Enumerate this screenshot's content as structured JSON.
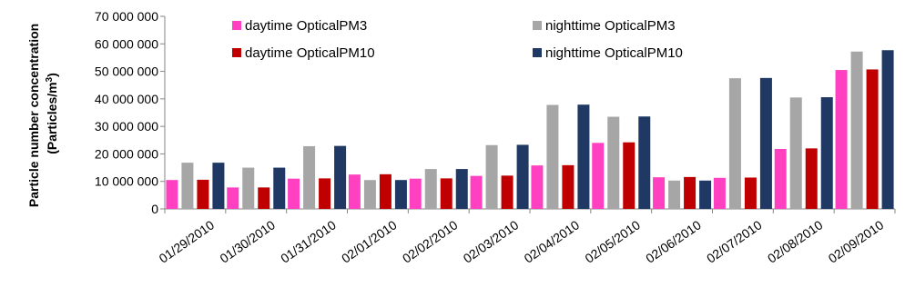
{
  "chart_data": {
    "type": "bar",
    "title": "",
    "xlabel": "",
    "ylabel": {
      "line1": "Particle number concentration",
      "line2_prefix": "(Particles/m",
      "line2_sup": "3",
      "line2_suffix": ")"
    },
    "ylim": [
      0,
      70000000
    ],
    "yticks": [
      0,
      10000000,
      20000000,
      30000000,
      40000000,
      50000000,
      60000000,
      70000000
    ],
    "ytick_labels": [
      "0",
      "10 000 000",
      "20 000 000",
      "30 000 000",
      "40 000 000",
      "50 000 000",
      "60 000 000",
      "70 000 000"
    ],
    "grid": false,
    "legend_position": "top-left",
    "categories": [
      "01/29/2010",
      "01/30/2010",
      "01/31/2010",
      "02/01/2010",
      "02/02/2010",
      "02/03/2010",
      "02/04/2010",
      "02/05/2010",
      "02/06/2010",
      "02/07/2010",
      "02/08/2010",
      "02/09/2010"
    ],
    "series": [
      {
        "name": "daytime OpticalPM3",
        "color": "#ff40c0",
        "values": [
          10500000,
          7800000,
          11000000,
          12500000,
          11000000,
          12000000,
          15800000,
          24000000,
          11500000,
          11300000,
          21800000,
          50500000
        ]
      },
      {
        "name": "nighttime OpticalPM3",
        "color": "#a6a6a6",
        "values": [
          16800000,
          15000000,
          22800000,
          10500000,
          14500000,
          23200000,
          37800000,
          33500000,
          10300000,
          47500000,
          40500000,
          57200000
        ]
      },
      {
        "name": "daytime OpticalPM10",
        "color": "#c00000",
        "values": [
          10600000,
          7800000,
          11100000,
          12600000,
          11100000,
          12100000,
          15900000,
          24200000,
          11600000,
          11400000,
          22000000,
          50700000
        ]
      },
      {
        "name": "nighttime OpticalPM10",
        "color": "#1f3864",
        "values": [
          16800000,
          15000000,
          22900000,
          10500000,
          14500000,
          23300000,
          37900000,
          33600000,
          10300000,
          47600000,
          40600000,
          57700000
        ]
      }
    ]
  }
}
